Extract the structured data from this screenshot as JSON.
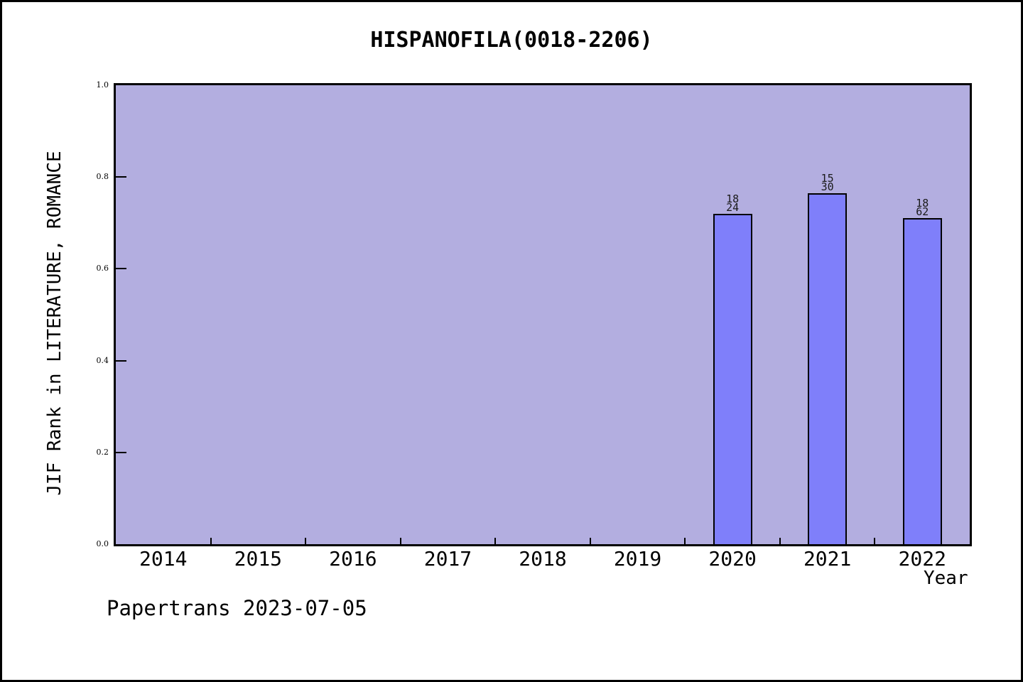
{
  "chart_data": {
    "type": "bar",
    "title": "HISPANOFILA(0018-2206)",
    "xlabel": "Year",
    "ylabel": "JIF Rank in LITERATURE, ROMANCE",
    "categories": [
      "2014",
      "2015",
      "2016",
      "2017",
      "2018",
      "2019",
      "2020",
      "2021",
      "2022"
    ],
    "values": [
      null,
      null,
      null,
      null,
      null,
      null,
      0.72,
      0.765,
      0.71
    ],
    "bar_annotations": [
      null,
      null,
      null,
      null,
      null,
      null,
      "18/24",
      "15/30",
      "18/62"
    ],
    "ylim": [
      0,
      1
    ],
    "ytick_labels": [
      "0.0",
      "0.2",
      "0.4",
      "0.6",
      "0.8",
      "1.0"
    ],
    "ytick_values": [
      0,
      0.2,
      0.4,
      0.6,
      0.8,
      1.0
    ],
    "grid": false,
    "legend_position": "none",
    "colors": {
      "bar_fill": "#7f7ffa",
      "bar_edge": "#000000",
      "plot_background": "#b3aee0",
      "page_background": "#ffffff",
      "axis": "#000000",
      "annotation_text": "#1a1a1a"
    }
  },
  "footer": {
    "text": "Papertrans 2023-07-05"
  }
}
